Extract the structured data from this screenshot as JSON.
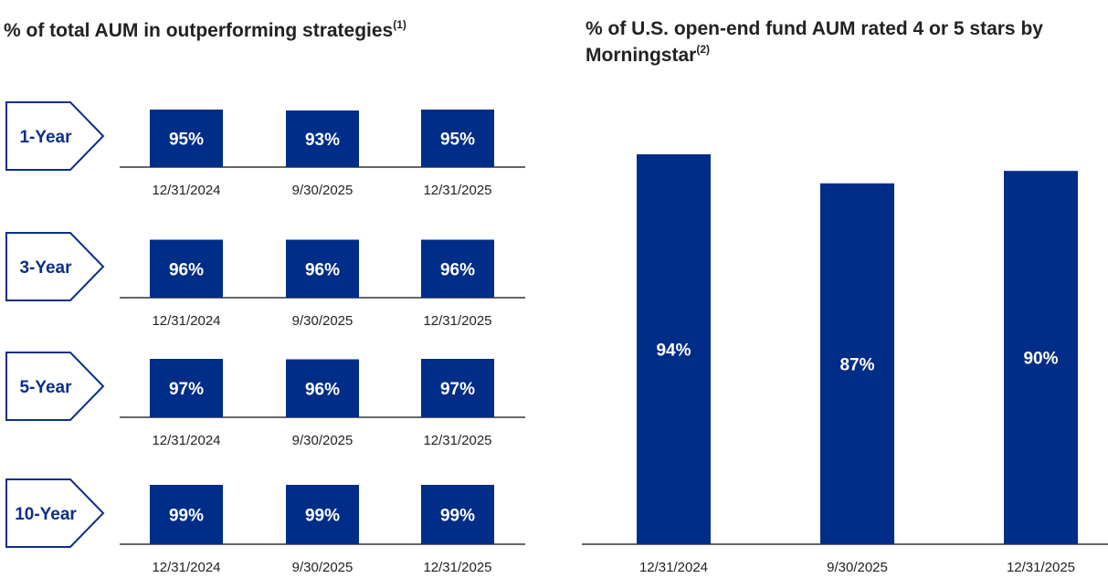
{
  "left": {
    "title": "% of total AUM in outperforming strategies",
    "title_note": "(1)"
  },
  "right": {
    "title": "% of U.S. open-end fund AUM rated 4 or 5 stars by Morningstar",
    "title_note": "(2)"
  },
  "colors": {
    "bar": "#002d87",
    "tag_text": "#0b2f8a",
    "axis": "#333333",
    "label": "#222222"
  },
  "chart_data": [
    {
      "type": "bar",
      "title": "% of total AUM in outperforming strategies",
      "categories": [
        "12/31/2024",
        "9/30/2025",
        "12/31/2025"
      ],
      "series": [
        {
          "name": "1-Year",
          "values": [
            95,
            93,
            95
          ]
        },
        {
          "name": "3-Year",
          "values": [
            96,
            96,
            96
          ]
        },
        {
          "name": "5-Year",
          "values": [
            97,
            96,
            97
          ]
        },
        {
          "name": "10-Year",
          "values": [
            99,
            99,
            99
          ]
        }
      ],
      "value_suffix": "%"
    },
    {
      "type": "bar",
      "title": "% of U.S. open-end fund AUM rated 4 or 5 stars by Morningstar",
      "categories": [
        "12/31/2024",
        "9/30/2025",
        "12/31/2025"
      ],
      "values": [
        94,
        87,
        90
      ],
      "value_suffix": "%"
    }
  ]
}
